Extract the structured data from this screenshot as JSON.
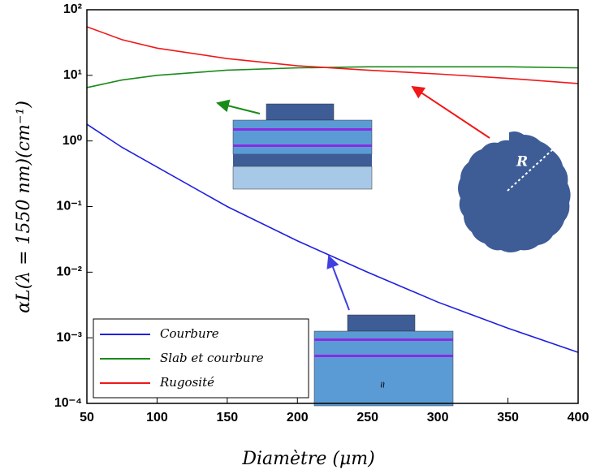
{
  "chart_data": {
    "type": "line",
    "x_label": "Diamètre (μm)",
    "y_label": "αL(λ = 1550 nm)(cm⁻¹)",
    "x": [
      50,
      75,
      100,
      150,
      200,
      250,
      300,
      350,
      400
    ],
    "series": [
      {
        "name": "Courbure",
        "color": "#1f1fe0",
        "values": [
          1.8,
          0.8,
          0.4,
          0.1,
          0.03,
          0.01,
          0.0035,
          0.0014,
          0.0006
        ]
      },
      {
        "name": "Slab et courbure",
        "color": "#1a8a1a",
        "values": [
          6.5,
          8.5,
          10,
          12,
          13,
          13.5,
          13.5,
          13.5,
          13
        ]
      },
      {
        "name": "Rugosité",
        "color": "#f01818",
        "values": [
          55,
          35,
          26,
          18,
          14,
          12,
          10.5,
          9,
          7.5
        ]
      }
    ],
    "xlim": [
      50,
      400
    ],
    "xticks": [
      50,
      100,
      150,
      200,
      250,
      300,
      350,
      400
    ],
    "ylim": [
      0.0001,
      100
    ],
    "yscale": "log",
    "yticks": [
      {
        "value": 0.0001,
        "label": "10⁻⁴"
      },
      {
        "value": 0.001,
        "label": "10⁻³"
      },
      {
        "value": 0.01,
        "label": "10⁻²"
      },
      {
        "value": 0.1,
        "label": "10⁻¹"
      },
      {
        "value": 1,
        "label": "10⁰"
      },
      {
        "value": 10,
        "label": "10¹"
      },
      {
        "value": 100,
        "label": "10²"
      }
    ],
    "legend": "lower left",
    "annotations": [
      "R",
      "≈"
    ]
  }
}
